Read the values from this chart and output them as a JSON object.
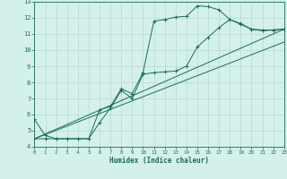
{
  "xlabel": "Humidex (Indice chaleur)",
  "bg_color": "#d4f0eb",
  "grid_color": "#b8d8d2",
  "line_color": "#1a6b5a",
  "xlim": [
    0,
    23
  ],
  "ylim": [
    4,
    13
  ],
  "xticks": [
    0,
    1,
    2,
    3,
    4,
    5,
    6,
    7,
    8,
    9,
    10,
    11,
    12,
    13,
    14,
    15,
    16,
    17,
    18,
    19,
    20,
    21,
    22,
    23
  ],
  "yticks": [
    4,
    5,
    6,
    7,
    8,
    9,
    10,
    11,
    12,
    13
  ],
  "line1_x": [
    0,
    1,
    2,
    3,
    4,
    5,
    6,
    7,
    8,
    9,
    10,
    11,
    12,
    13,
    14,
    15,
    16,
    17,
    18,
    19,
    20,
    21,
    22,
    23
  ],
  "line1_y": [
    5.7,
    4.7,
    4.5,
    4.5,
    4.5,
    4.5,
    6.3,
    6.5,
    7.6,
    7.3,
    8.6,
    11.8,
    11.9,
    12.05,
    12.1,
    12.75,
    12.7,
    12.5,
    11.9,
    11.6,
    11.3,
    11.2,
    11.25,
    11.3
  ],
  "line2_x": [
    0,
    1,
    2,
    3,
    4,
    5,
    6,
    7,
    8,
    9,
    10,
    11,
    12,
    13,
    14,
    15,
    16,
    17,
    18,
    19,
    20,
    21,
    22,
    23
  ],
  "line2_y": [
    4.5,
    4.5,
    4.5,
    4.5,
    4.5,
    4.5,
    5.5,
    6.4,
    7.5,
    7.0,
    8.5,
    8.6,
    8.65,
    8.7,
    9.0,
    10.2,
    10.8,
    11.4,
    11.9,
    11.65,
    11.3,
    11.25,
    11.25,
    11.3
  ],
  "line3_x": [
    0,
    23
  ],
  "line3_y": [
    4.5,
    11.3
  ],
  "line4_x": [
    0,
    23
  ],
  "line4_y": [
    4.5,
    10.5
  ]
}
